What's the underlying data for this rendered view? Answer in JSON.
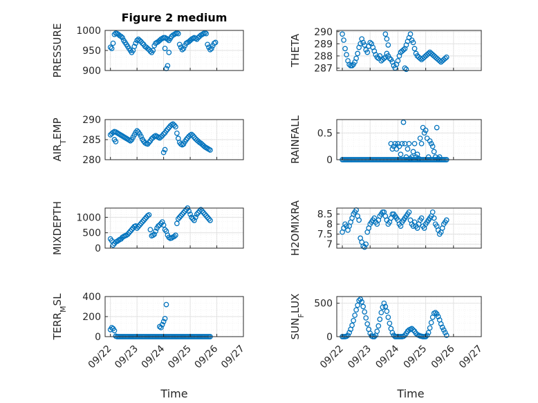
{
  "title": "Figure 2 medium",
  "series_color": "#0072BD",
  "xticks": [
    "09/22",
    "09/23",
    "09/24",
    "09/25",
    "09/26",
    "09/27"
  ],
  "xlabel": "Time",
  "chart_data": [
    {
      "type": "scatter",
      "ylabel": "PRESSURE",
      "x": [
        0,
        0.05,
        0.1,
        0.15,
        0.2,
        0.25,
        0.3,
        0.35,
        0.4,
        0.45,
        0.5,
        0.55,
        0.6,
        0.65,
        0.7,
        0.75,
        0.8,
        0.85,
        0.9,
        0.95,
        1.0,
        1.05,
        1.1,
        1.15,
        1.2,
        1.25,
        1.3,
        1.35,
        1.4,
        1.45,
        1.5,
        1.55,
        1.6,
        1.65,
        1.7,
        1.75,
        1.8,
        1.85,
        1.9,
        1.95,
        2.0,
        2.05,
        2.1,
        2.15,
        2.2,
        2.25,
        2.3,
        2.35,
        2.4,
        2.45,
        2.5,
        2.55,
        2.6,
        2.65,
        2.7,
        2.75,
        2.8,
        2.85,
        2.9,
        2.95,
        3.0,
        3.05,
        3.1,
        3.15,
        3.2,
        3.25,
        3.3,
        3.35,
        3.4,
        3.45,
        3.5,
        3.55,
        3.6,
        3.65,
        3.7,
        3.75,
        3.8,
        3.85,
        3.9,
        3.95,
        2.1,
        2.15,
        2.2,
        2.05
      ],
      "y": [
        958,
        955,
        968,
        990,
        993,
        992,
        990,
        987,
        985,
        982,
        975,
        970,
        965,
        960,
        955,
        950,
        945,
        950,
        960,
        968,
        975,
        978,
        975,
        972,
        968,
        965,
        960,
        958,
        955,
        952,
        948,
        945,
        950,
        962,
        968,
        970,
        972,
        975,
        978,
        980,
        982,
        982,
        980,
        978,
        975,
        980,
        985,
        988,
        990,
        992,
        994,
        992,
        965,
        958,
        952,
        955,
        962,
        968,
        970,
        972,
        975,
        978,
        980,
        982,
        980,
        978,
        982,
        985,
        988,
        990,
        992,
        994,
        992,
        965,
        958,
        952,
        955,
        962,
        968,
        970,
        905,
        912,
        945,
        955
      ],
      "ylim": [
        900,
        1000
      ],
      "yticks": [
        900,
        950,
        1000
      ]
    },
    {
      "type": "scatter",
      "ylabel": "THETA",
      "x": [
        0,
        0.05,
        0.1,
        0.15,
        0.2,
        0.25,
        0.3,
        0.35,
        0.4,
        0.45,
        0.5,
        0.55,
        0.6,
        0.65,
        0.7,
        0.75,
        0.8,
        0.85,
        0.9,
        0.95,
        1.0,
        1.05,
        1.1,
        1.15,
        1.2,
        1.25,
        1.3,
        1.35,
        1.4,
        1.45,
        1.5,
        1.55,
        1.6,
        1.65,
        1.7,
        1.75,
        1.8,
        1.85,
        1.9,
        1.95,
        2.0,
        2.05,
        2.1,
        2.15,
        2.2,
        2.25,
        2.3,
        2.35,
        2.4,
        2.45,
        2.5,
        2.55,
        2.6,
        2.65,
        2.7,
        2.75,
        2.8,
        2.85,
        2.9,
        2.95,
        3.0,
        3.05,
        3.1,
        3.15,
        3.2,
        3.25,
        3.3,
        3.35,
        3.4,
        3.45,
        3.5,
        3.55,
        3.6,
        3.65,
        3.7,
        3.75,
        1.55,
        1.6,
        1.65,
        2.25,
        2.3
      ],
      "y": [
        289.8,
        289.3,
        288.6,
        288.1,
        287.6,
        287.3,
        287.2,
        287.2,
        287.3,
        287.5,
        287.8,
        288.2,
        288.7,
        289.0,
        289.4,
        289.1,
        288.9,
        288.5,
        288.3,
        288.8,
        289.1,
        289.0,
        288.7,
        288.4,
        288.1,
        287.9,
        287.8,
        288.0,
        287.6,
        287.7,
        287.8,
        287.9,
        288.2,
        288.0,
        287.8,
        287.7,
        287.5,
        287.2,
        287.0,
        287.3,
        287.6,
        288.0,
        288.3,
        288.4,
        288.5,
        288.6,
        288.9,
        289.2,
        289.5,
        289.8,
        289.3,
        289.1,
        288.6,
        288.2,
        288.0,
        287.9,
        287.8,
        287.7,
        287.8,
        287.9,
        288.0,
        288.1,
        288.2,
        288.3,
        288.2,
        288.1,
        288.0,
        287.9,
        287.8,
        287.7,
        287.6,
        287.5,
        287.6,
        287.7,
        287.8,
        287.9,
        289.8,
        289.4,
        288.9,
        287.0,
        286.9
      ],
      "ylim": [
        286.8,
        290.1
      ],
      "yticks": [
        287,
        288,
        289,
        290
      ]
    },
    {
      "type": "scatter",
      "ylabel": "AIR_TEMP",
      "x": [
        0,
        0.05,
        0.1,
        0.15,
        0.2,
        0.25,
        0.3,
        0.35,
        0.4,
        0.45,
        0.5,
        0.55,
        0.6,
        0.65,
        0.7,
        0.75,
        0.8,
        0.85,
        0.9,
        0.95,
        1.0,
        1.05,
        1.1,
        1.15,
        1.2,
        1.25,
        1.3,
        1.35,
        1.4,
        1.45,
        1.5,
        1.55,
        1.6,
        1.65,
        1.7,
        1.75,
        1.8,
        1.85,
        1.9,
        1.95,
        2.0,
        2.05,
        2.1,
        2.15,
        2.2,
        2.25,
        2.3,
        2.35,
        2.4,
        2.45,
        2.5,
        2.55,
        2.6,
        2.65,
        2.7,
        2.75,
        2.8,
        2.85,
        2.9,
        2.95,
        3.0,
        3.05,
        3.1,
        3.15,
        3.2,
        3.25,
        3.3,
        3.35,
        3.4,
        3.45,
        3.5,
        3.55,
        3.6,
        3.65,
        3.7,
        3.75,
        0.15,
        0.2,
        2.0,
        2.05
      ],
      "y": [
        286.2,
        286.5,
        286.8,
        287.0,
        286.9,
        286.7,
        286.5,
        286.3,
        286.1,
        285.9,
        285.7,
        285.5,
        285.3,
        285.1,
        284.9,
        284.7,
        285.0,
        285.6,
        286.2,
        286.8,
        287.2,
        286.9,
        286.4,
        285.8,
        285.1,
        284.6,
        284.2,
        284.0,
        283.9,
        284.3,
        284.7,
        285.2,
        285.5,
        285.8,
        286.0,
        285.8,
        285.6,
        285.4,
        285.7,
        286.0,
        286.4,
        286.7,
        287.2,
        287.6,
        288.0,
        288.4,
        288.7,
        288.9,
        288.6,
        288.2,
        286.6,
        285.3,
        284.3,
        283.9,
        283.7,
        283.9,
        284.5,
        285.0,
        285.4,
        285.8,
        286.1,
        286.3,
        286.0,
        285.6,
        285.2,
        284.9,
        284.6,
        284.3,
        284.1,
        283.8,
        283.5,
        283.2,
        283.0,
        282.8,
        282.6,
        282.4,
        285.0,
        284.5,
        281.8,
        282.5
      ],
      "ylim": [
        280,
        290
      ],
      "yticks": [
        280,
        285,
        290
      ]
    },
    {
      "type": "scatter",
      "ylabel": "RAINFALL",
      "x": [
        0,
        0.05,
        0.1,
        0.15,
        0.2,
        0.25,
        0.3,
        0.35,
        0.4,
        0.45,
        0.5,
        0.55,
        0.6,
        0.65,
        0.7,
        0.75,
        0.8,
        0.85,
        0.9,
        0.95,
        1.0,
        1.05,
        1.1,
        1.15,
        1.2,
        1.25,
        1.3,
        1.35,
        1.4,
        1.45,
        1.5,
        1.55,
        1.6,
        1.65,
        1.7,
        1.75,
        1.8,
        1.85,
        1.9,
        1.95,
        2.0,
        2.05,
        2.1,
        2.15,
        2.2,
        2.25,
        2.3,
        2.35,
        2.4,
        2.45,
        2.5,
        2.55,
        2.6,
        2.65,
        2.7,
        2.75,
        2.8,
        2.85,
        2.9,
        2.95,
        3.0,
        3.05,
        3.1,
        3.15,
        3.2,
        3.25,
        3.3,
        3.35,
        3.4,
        3.45,
        3.5,
        3.55,
        3.6,
        3.65,
        3.7,
        3.75,
        1.75,
        1.8,
        1.85,
        1.9,
        1.95,
        2.0,
        2.05,
        2.1,
        2.15,
        2.2,
        2.25,
        2.3,
        2.35,
        2.4,
        2.45,
        2.5,
        2.55,
        2.6,
        2.65,
        2.7,
        2.75,
        2.8,
        2.85,
        2.9,
        2.95,
        3.0,
        3.05,
        3.1,
        3.15,
        3.2,
        3.25,
        3.3,
        3.35,
        3.4,
        3.45,
        3.5
      ],
      "y": [
        0,
        0,
        0,
        0,
        0,
        0,
        0,
        0,
        0,
        0,
        0,
        0,
        0,
        0,
        0,
        0,
        0,
        0,
        0,
        0,
        0,
        0,
        0,
        0,
        0,
        0,
        0,
        0,
        0,
        0,
        0,
        0,
        0,
        0,
        0,
        0,
        0,
        0,
        0,
        0,
        0,
        0,
        0,
        0,
        0,
        0,
        0,
        0,
        0,
        0,
        0,
        0,
        0,
        0,
        0,
        0,
        0,
        0,
        0,
        0,
        0,
        0,
        0,
        0,
        0,
        0,
        0,
        0,
        0,
        0,
        0,
        0,
        0,
        0,
        0,
        0,
        0.3,
        0.2,
        0.25,
        0.3,
        0.2,
        0.3,
        0.25,
        0.1,
        0.3,
        0.7,
        0.3,
        0.05,
        0.2,
        0.3,
        0.02,
        0.05,
        0.15,
        0.3,
        0.05,
        0.1,
        0.02,
        0.4,
        0.3,
        0.6,
        0.5,
        0.55,
        0.4,
        0.05,
        0.35,
        0.3,
        0.25,
        0.15,
        0.05,
        0.6,
        0.02,
        0.05
      ],
      "ylim": [
        0,
        0.75
      ],
      "yticks": [
        0,
        0.5
      ]
    },
    {
      "type": "scatter",
      "ylabel": "MIXDEPTH",
      "x": [
        0,
        0.05,
        0.1,
        0.15,
        0.2,
        0.25,
        0.3,
        0.35,
        0.4,
        0.45,
        0.5,
        0.55,
        0.6,
        0.65,
        0.7,
        0.75,
        0.8,
        0.85,
        0.9,
        0.95,
        1.0,
        1.05,
        1.1,
        1.15,
        1.2,
        1.25,
        1.3,
        1.35,
        1.4,
        1.45,
        1.5,
        1.55,
        1.6,
        1.65,
        1.7,
        1.75,
        1.8,
        1.85,
        1.9,
        1.95,
        2.0,
        2.05,
        2.1,
        2.15,
        2.2,
        2.25,
        2.3,
        2.35,
        2.4,
        2.45,
        2.5,
        2.55,
        2.6,
        2.65,
        2.7,
        2.75,
        2.8,
        2.85,
        2.9,
        2.95,
        3.0,
        3.05,
        3.1,
        3.15,
        3.2,
        3.25,
        3.3,
        3.35,
        3.4,
        3.45,
        3.5,
        3.55,
        3.6,
        3.65,
        3.7,
        3.75
      ],
      "y": [
        300,
        240,
        100,
        150,
        200,
        220,
        250,
        280,
        300,
        350,
        380,
        400,
        420,
        450,
        500,
        550,
        600,
        650,
        700,
        720,
        650,
        700,
        750,
        800,
        850,
        900,
        950,
        1000,
        1050,
        1080,
        600,
        400,
        420,
        450,
        550,
        650,
        720,
        750,
        800,
        850,
        750,
        600,
        550,
        420,
        350,
        320,
        330,
        360,
        380,
        420,
        800,
        950,
        1000,
        1050,
        1100,
        1150,
        1200,
        1250,
        1300,
        1200,
        1100,
        1000,
        950,
        900,
        1000,
        1100,
        1150,
        1200,
        1250,
        1200,
        1150,
        1100,
        1050,
        1000,
        950,
        900
      ],
      "ylim": [
        0,
        1300
      ],
      "yticks": [
        0,
        500,
        1000
      ]
    },
    {
      "type": "scatter",
      "ylabel": "H2OMIXRA",
      "x": [
        0,
        0.05,
        0.1,
        0.15,
        0.2,
        0.25,
        0.3,
        0.35,
        0.4,
        0.45,
        0.5,
        0.55,
        0.6,
        0.65,
        0.7,
        0.75,
        0.8,
        0.85,
        0.9,
        0.95,
        1.0,
        1.05,
        1.1,
        1.15,
        1.2,
        1.25,
        1.3,
        1.35,
        1.4,
        1.45,
        1.5,
        1.55,
        1.6,
        1.65,
        1.7,
        1.75,
        1.8,
        1.85,
        1.9,
        1.95,
        2.0,
        2.05,
        2.1,
        2.15,
        2.2,
        2.25,
        2.3,
        2.35,
        2.4,
        2.45,
        2.5,
        2.55,
        2.6,
        2.65,
        2.7,
        2.75,
        2.8,
        2.85,
        2.9,
        2.95,
        3.0,
        3.05,
        3.1,
        3.15,
        3.2,
        3.25,
        3.3,
        3.35,
        3.4,
        3.45,
        3.5,
        3.55,
        3.6,
        3.65,
        3.7,
        3.75
      ],
      "y": [
        7.6,
        7.8,
        8.0,
        7.9,
        7.7,
        7.9,
        8.1,
        8.3,
        8.5,
        8.6,
        8.7,
        8.4,
        8.2,
        7.3,
        7.1,
        6.9,
        6.85,
        7.0,
        7.6,
        7.8,
        8.0,
        8.1,
        8.2,
        8.3,
        8.1,
        8.0,
        8.2,
        8.4,
        8.5,
        8.6,
        8.6,
        8.4,
        8.2,
        8.0,
        8.1,
        8.3,
        8.5,
        8.5,
        8.4,
        8.3,
        8.2,
        8.0,
        7.9,
        8.1,
        8.2,
        8.3,
        8.4,
        8.5,
        8.6,
        8.2,
        8.0,
        7.9,
        8.1,
        7.9,
        7.8,
        8.0,
        8.2,
        8.3,
        7.9,
        7.8,
        8.0,
        8.1,
        8.2,
        8.3,
        8.4,
        8.6,
        8.3,
        8.0,
        7.9,
        7.7,
        7.5,
        7.6,
        7.8,
        8.0,
        8.1,
        8.2
      ],
      "ylim": [
        6.8,
        8.8
      ],
      "yticks": [
        7,
        7.5,
        8,
        8.5
      ]
    },
    {
      "type": "scatter",
      "ylabel": "TERR_MSL",
      "x": [
        0,
        0.05,
        0.1,
        0.15,
        0.2,
        0.25,
        0.3,
        0.35,
        0.4,
        0.45,
        0.5,
        0.55,
        0.6,
        0.65,
        0.7,
        0.75,
        0.8,
        0.85,
        0.9,
        0.95,
        1.0,
        1.05,
        1.1,
        1.15,
        1.2,
        1.25,
        1.3,
        1.35,
        1.4,
        1.45,
        1.5,
        1.55,
        1.6,
        1.65,
        1.7,
        1.75,
        1.8,
        1.85,
        1.9,
        1.95,
        2.0,
        2.05,
        2.1,
        2.15,
        2.2,
        2.25,
        2.3,
        2.35,
        2.4,
        2.45,
        2.5,
        2.55,
        2.6,
        2.65,
        2.7,
        2.75,
        2.8,
        2.85,
        2.9,
        2.95,
        3.0,
        3.05,
        3.1,
        3.15,
        3.2,
        3.25,
        3.3,
        3.35,
        3.4,
        3.45,
        3.5,
        3.55,
        3.6,
        3.65,
        3.7,
        3.75,
        1.85,
        1.9,
        1.95,
        2.0,
        2.05,
        2.1
      ],
      "y": [
        70,
        90,
        80,
        60,
        5,
        0,
        0,
        0,
        0,
        0,
        0,
        0,
        0,
        0,
        0,
        0,
        0,
        0,
        0,
        0,
        0,
        0,
        0,
        0,
        0,
        0,
        0,
        0,
        0,
        0,
        0,
        0,
        0,
        0,
        0,
        0,
        0,
        0,
        0,
        0,
        0,
        0,
        0,
        0,
        0,
        0,
        0,
        0,
        0,
        0,
        0,
        0,
        0,
        0,
        0,
        0,
        0,
        0,
        0,
        0,
        0,
        0,
        0,
        0,
        0,
        0,
        0,
        0,
        0,
        0,
        0,
        0,
        0,
        0,
        0,
        0,
        100,
        90,
        120,
        150,
        180,
        320
      ],
      "ylim": [
        0,
        400
      ],
      "yticks": [
        0,
        200,
        400
      ]
    },
    {
      "type": "scatter",
      "ylabel": "SUN_FLUX",
      "x": [
        0,
        0.05,
        0.1,
        0.15,
        0.2,
        0.25,
        0.3,
        0.35,
        0.4,
        0.45,
        0.5,
        0.55,
        0.6,
        0.65,
        0.7,
        0.75,
        0.8,
        0.85,
        0.9,
        0.95,
        1.0,
        1.05,
        1.1,
        1.15,
        1.2,
        1.25,
        1.3,
        1.35,
        1.4,
        1.45,
        1.5,
        1.55,
        1.6,
        1.65,
        1.7,
        1.75,
        1.8,
        1.85,
        1.9,
        1.95,
        2.0,
        2.05,
        2.1,
        2.15,
        2.2,
        2.25,
        2.3,
        2.35,
        2.4,
        2.45,
        2.5,
        2.55,
        2.6,
        2.65,
        2.7,
        2.75,
        2.8,
        2.85,
        2.9,
        2.95,
        3.0,
        3.05,
        3.1,
        3.15,
        3.2,
        3.25,
        3.3,
        3.35,
        3.4,
        3.45,
        3.5,
        3.55,
        3.6,
        3.65,
        3.7,
        3.75
      ],
      "y": [
        0,
        0,
        0,
        5,
        20,
        60,
        110,
        170,
        240,
        320,
        400,
        470,
        540,
        560,
        520,
        450,
        370,
        280,
        190,
        110,
        50,
        10,
        0,
        0,
        20,
        80,
        160,
        260,
        360,
        440,
        500,
        450,
        380,
        290,
        200,
        120,
        60,
        20,
        0,
        0,
        0,
        0,
        0,
        0,
        5,
        20,
        50,
        80,
        100,
        110,
        120,
        100,
        80,
        50,
        30,
        20,
        10,
        5,
        0,
        0,
        0,
        20,
        60,
        130,
        210,
        290,
        350,
        360,
        340,
        300,
        250,
        190,
        140,
        100,
        60,
        20
      ],
      "ylim": [
        0,
        600
      ],
      "yticks": [
        0,
        500
      ]
    }
  ]
}
